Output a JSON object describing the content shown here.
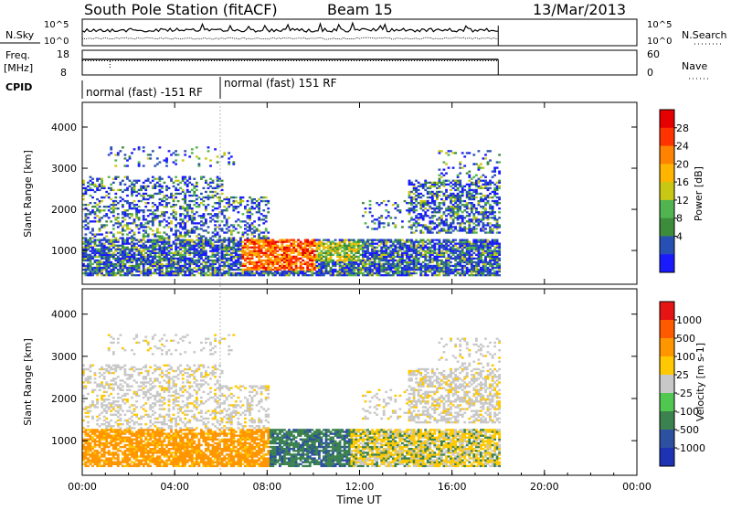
{
  "header": {
    "title": "South Pole Station (fitACF)",
    "beam": "Beam 15",
    "date": "13/Mar/2013"
  },
  "status_panels": {
    "nsky": {
      "label": "N.Sky",
      "left_ticks": [
        "10^5",
        "10^0"
      ],
      "right_ticks": [
        "10^5",
        "10^0"
      ],
      "right_label": "N.Search"
    },
    "freq": {
      "label_line1": "Freq.",
      "label_line2": "[MHz]",
      "left_ticks": [
        "18",
        "8"
      ],
      "right_ticks": [
        "60",
        "0"
      ],
      "right_label": "Nave"
    },
    "cpid": {
      "label": "CPID",
      "segments": [
        {
          "text": "normal (fast) -151 RF",
          "start_hour": 0.0
        },
        {
          "text": "normal (fast) 151 RF",
          "start_hour": 6.0
        }
      ]
    }
  },
  "chart_data": [
    {
      "type": "heatmap",
      "name": "power",
      "ylabel": "Slant Range [km]",
      "xlabel": "",
      "xlim_hours": [
        0,
        24
      ],
      "ylim": [
        180,
        4600
      ],
      "y_ticks": [
        "1000",
        "2000",
        "3000",
        "4000"
      ],
      "colorbar": {
        "label": "Power [dB]",
        "ticks": [
          "28",
          "24",
          "20",
          "16",
          "12",
          "8",
          "4"
        ],
        "colors": [
          "#1a1aff",
          "#2850b4",
          "#3c8c3c",
          "#50b450",
          "#c8c814",
          "#ffb400",
          "#ff8200",
          "#ff3200",
          "#e60000"
        ]
      },
      "data_end_hour": 18.0,
      "regions": [
        {
          "desc": "near range band",
          "t0": 0.0,
          "t1": 18.0,
          "r0": 300,
          "r1": 1200,
          "level": "low"
        },
        {
          "desc": "strong echo",
          "t0": 6.8,
          "t1": 10.0,
          "r0": 550,
          "r1": 1300,
          "level": "high"
        },
        {
          "desc": "far range scatter",
          "t0": 14.0,
          "t1": 18.0,
          "r0": 1500,
          "r1": 3000,
          "level": "low"
        },
        {
          "desc": "early far range",
          "t0": 0.0,
          "t1": 6.0,
          "r0": 1300,
          "r1": 3500,
          "level": "low"
        }
      ]
    },
    {
      "type": "heatmap",
      "name": "velocity",
      "ylabel": "Slant Range [km]",
      "xlabel": "Time UT",
      "x_ticks": [
        "00:00",
        "04:00",
        "08:00",
        "12:00",
        "16:00",
        "20:00",
        "00:00"
      ],
      "xlim_hours": [
        0,
        24
      ],
      "ylim": [
        180,
        4600
      ],
      "y_ticks": [
        "1000",
        "2000",
        "3000",
        "4000"
      ],
      "colorbar": {
        "label": "Velocity [m s-1]",
        "ticks": [
          "1000",
          "500",
          "100",
          "25",
          "-25",
          "-100",
          "-500",
          "-1000"
        ],
        "colors": [
          "#1e32b4",
          "#2d50a0",
          "#3c8250",
          "#50c850",
          "#c8c8c8",
          "#ffc800",
          "#ff9600",
          "#ff5a00",
          "#e61414"
        ]
      },
      "data_end_hour": 18.0
    }
  ]
}
